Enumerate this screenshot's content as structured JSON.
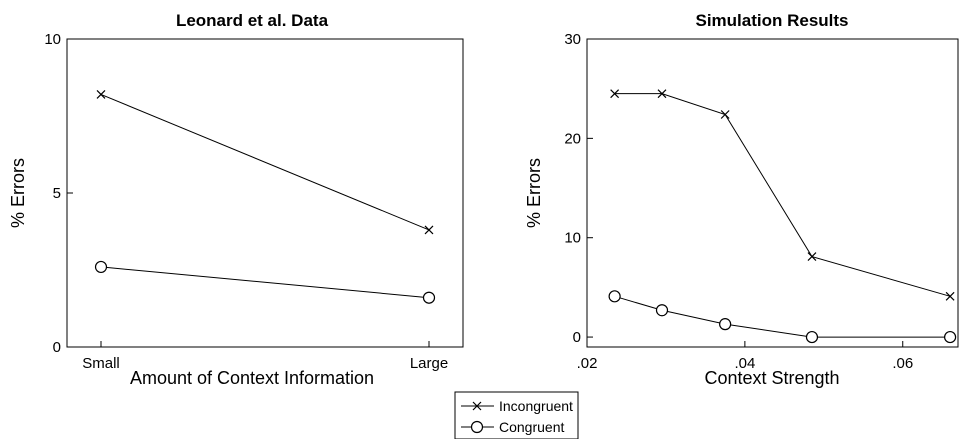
{
  "chart_data": [
    {
      "type": "line",
      "title": "Leonard et al. Data",
      "xlabel": "Amount of Context Information",
      "ylabel": "% Errors",
      "categories": [
        "Small",
        "Large"
      ],
      "ylim": [
        0,
        10
      ],
      "yticks": [
        "0",
        "5",
        "10"
      ],
      "series": [
        {
          "name": "Incongruent",
          "marker": "x",
          "values": [
            8.2,
            3.8
          ]
        },
        {
          "name": "Congruent",
          "marker": "o",
          "values": [
            2.6,
            1.6
          ]
        }
      ],
      "grid": false
    },
    {
      "type": "line",
      "title": "Simulation Results",
      "xlabel": "Context Strength",
      "ylabel": "% Errors",
      "xlim": [
        0.02,
        0.067
      ],
      "ylim": [
        -1,
        30
      ],
      "xticks": [
        {
          "value": 0.02,
          "label": ".02"
        },
        {
          "value": 0.04,
          "label": ".04"
        },
        {
          "value": 0.06,
          "label": ".06"
        }
      ],
      "yticks": [
        {
          "value": 0,
          "label": "0"
        },
        {
          "value": 10,
          "label": "10"
        },
        {
          "value": 20,
          "label": "20"
        },
        {
          "value": 30,
          "label": "30"
        }
      ],
      "series": [
        {
          "name": "Incongruent",
          "marker": "x",
          "x": [
            0.0235,
            0.0295,
            0.0375,
            0.0485,
            0.066
          ],
          "y": [
            24.5,
            24.5,
            22.4,
            8.1,
            4.1
          ]
        },
        {
          "name": "Congruent",
          "marker": "o",
          "x": [
            0.0235,
            0.0295,
            0.0375,
            0.0485,
            0.066
          ],
          "y": [
            4.1,
            2.7,
            1.3,
            0.0,
            0.0
          ]
        }
      ],
      "grid": false
    }
  ],
  "legend": {
    "placement": "bottom-center",
    "items": [
      {
        "label": "Incongruent",
        "marker": "x"
      },
      {
        "label": "Congruent",
        "marker": "o"
      }
    ]
  }
}
